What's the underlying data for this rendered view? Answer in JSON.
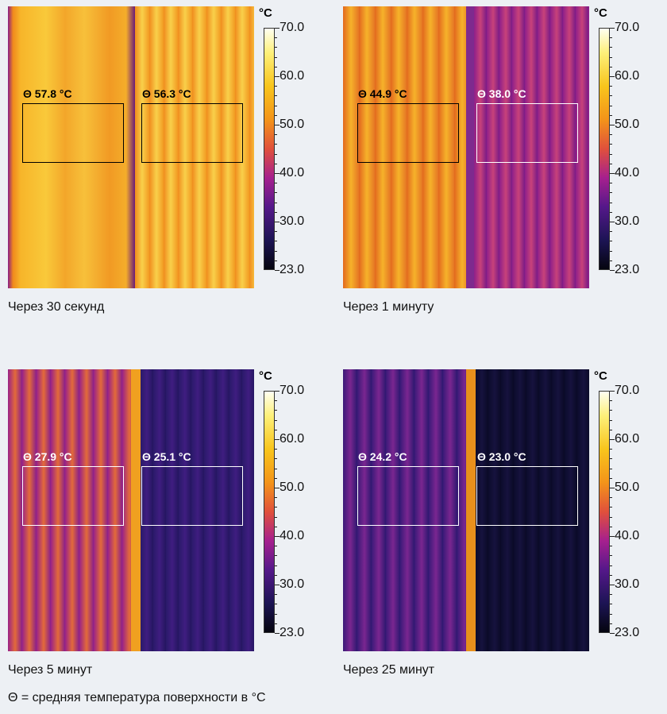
{
  "scale": {
    "unit": "°C",
    "ticks": [
      "70.0",
      "60.0",
      "50.0",
      "40.0",
      "30.0",
      "23.0"
    ]
  },
  "panels": [
    {
      "caption": "Через 30 секунд",
      "measurements": [
        {
          "label": "Θ 57.8 °C",
          "color": "black"
        },
        {
          "label": "Θ 56.3 °C",
          "color": "black"
        }
      ]
    },
    {
      "caption": "Через 1 минуту",
      "measurements": [
        {
          "label": "Θ 44.9 °C",
          "color": "black"
        },
        {
          "label": "Θ 38.0 °C",
          "color": "white"
        }
      ]
    },
    {
      "caption": "Через 5 минут",
      "measurements": [
        {
          "label": "Θ 27.9 °C",
          "color": "white"
        },
        {
          "label": "Θ 25.1 °C",
          "color": "white"
        }
      ]
    },
    {
      "caption": "Через 25 минут",
      "measurements": [
        {
          "label": "Θ 24.2 °C",
          "color": "white"
        },
        {
          "label": "Θ 23.0 °C",
          "color": "white"
        }
      ]
    }
  ],
  "footnote": "Θ = средняя температура поверхности в °C"
}
